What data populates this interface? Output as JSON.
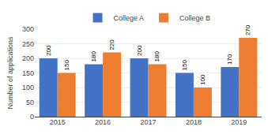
{
  "chart_data": {
    "type": "bar",
    "categories": [
      "2015",
      "2016",
      "2017",
      "2018",
      "2019"
    ],
    "series": [
      {
        "name": "College A",
        "color": "#4472C4",
        "values": [
          200,
          180,
          200,
          150,
          170
        ]
      },
      {
        "name": "College B",
        "color": "#ED7D31",
        "values": [
          150,
          220,
          180,
          100,
          270
        ]
      }
    ],
    "ylabel": "Number of applications",
    "ylim": [
      0,
      300
    ],
    "yticks": [
      0,
      50,
      100,
      150,
      200,
      250,
      300
    ],
    "grid": true,
    "legend": "top",
    "data_labels": true
  }
}
